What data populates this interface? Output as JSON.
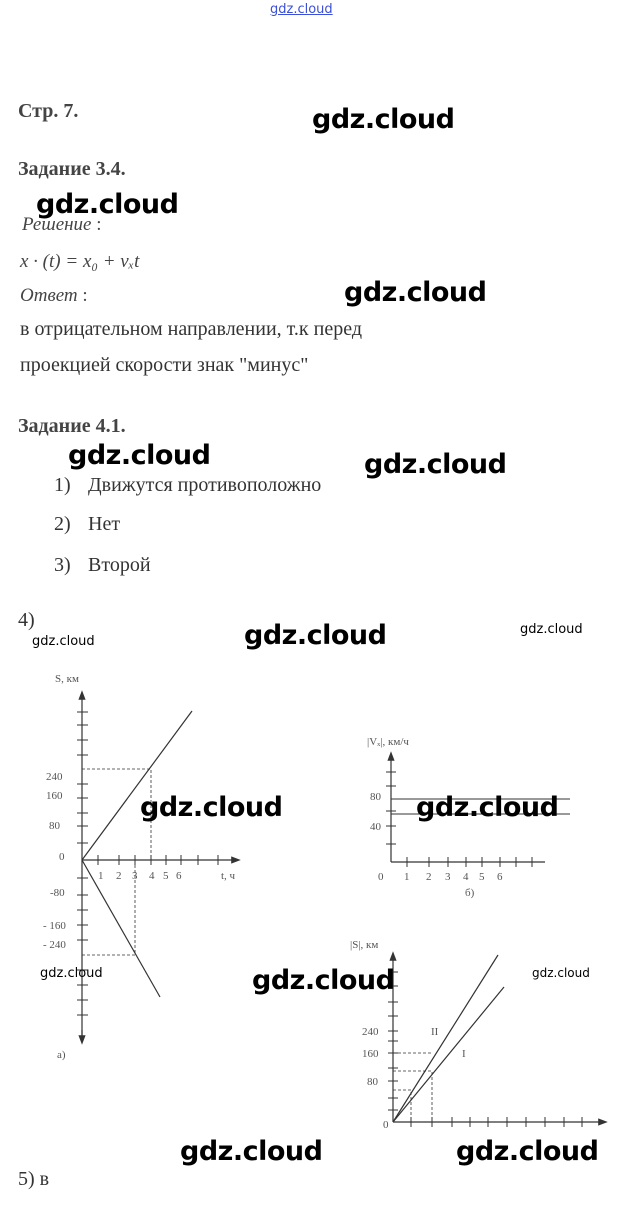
{
  "watermark_top": "gdz.cloud",
  "watermarks": [
    "gdz.cloud",
    "gdz.cloud",
    "gdz.cloud",
    "gdz.cloud",
    "gdz.cloud",
    "gdz.cloud",
    "gdz.cloud",
    "gdz.cloud",
    "gdz.cloud",
    "gdz.cloud",
    "gdz.cloud",
    "gdz.cloud",
    "gdz.cloud",
    "gdz.cloud",
    "gdz.cloud"
  ],
  "page_label": "Стр. 7.",
  "task_3_4": {
    "title": "Задание 3.4.",
    "solution_label": "Решение",
    "formula": "x · (t) = x₀ + vₓt",
    "answer_label": "Ответ",
    "answer_line1": "в отрицательном направлении, т.к перед",
    "answer_line2": "проекцией скорости знак \"минус\""
  },
  "task_4_1": {
    "title": "Задание 4.1.",
    "items": [
      {
        "num": "1)",
        "text": "Движутся противоположно"
      },
      {
        "num": "2)",
        "text": "Нет"
      },
      {
        "num": "3)",
        "text": "Второй"
      }
    ],
    "item4": "4)",
    "item5": "5) в"
  },
  "graph_a": {
    "ylabel": "S, км",
    "xlabel": "t, ч",
    "yticks": [
      "240",
      "160",
      "80",
      "0",
      "-80",
      "- 160",
      "- 240"
    ],
    "xticks": [
      "1",
      "2",
      "3",
      "4",
      "5",
      "6"
    ],
    "caption": "а)"
  },
  "graph_b": {
    "ylabel": "|Vₓ|, км/ч",
    "yticks": [
      "80",
      "40"
    ],
    "xticks": [
      "0",
      "1",
      "2",
      "3",
      "4",
      "5",
      "6"
    ],
    "caption": "б)"
  },
  "graph_c": {
    "ylabel": "|S|, км",
    "yticks": [
      "240",
      "160",
      "80",
      "0"
    ],
    "line_labels": [
      "II",
      "I"
    ]
  }
}
